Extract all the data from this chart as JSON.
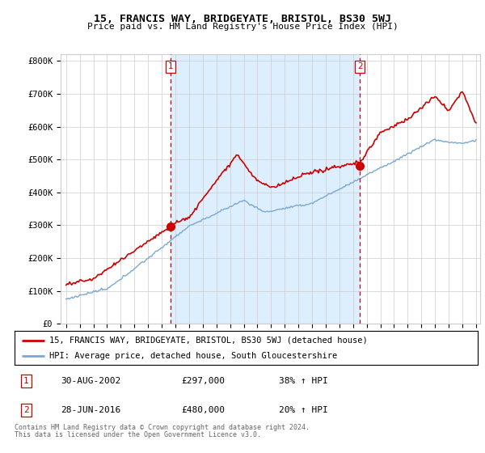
{
  "title": "15, FRANCIS WAY, BRIDGEYATE, BRISTOL, BS30 5WJ",
  "subtitle": "Price paid vs. HM Land Registry's House Price Index (HPI)",
  "ylabel_ticks": [
    "£0",
    "£100K",
    "£200K",
    "£300K",
    "£400K",
    "£500K",
    "£600K",
    "£700K",
    "£800K"
  ],
  "ytick_values": [
    0,
    100000,
    200000,
    300000,
    400000,
    500000,
    600000,
    700000,
    800000
  ],
  "ylim": [
    0,
    820000
  ],
  "xlim_start": 1994.6,
  "xlim_end": 2025.3,
  "red_line_color": "#cc0000",
  "blue_line_color": "#7aa8d2",
  "shade_color": "#ddeeff",
  "grid_color": "#cccccc",
  "background_color": "#ffffff",
  "transaction1_x": 2002.667,
  "transaction1_y": 297000,
  "transaction2_x": 2016.5,
  "transaction2_y": 480000,
  "legend_red": "15, FRANCIS WAY, BRIDGEYATE, BRISTOL, BS30 5WJ (detached house)",
  "legend_blue": "HPI: Average price, detached house, South Gloucestershire",
  "table_row1": [
    "1",
    "30-AUG-2002",
    "£297,000",
    "38% ↑ HPI"
  ],
  "table_row2": [
    "2",
    "28-JUN-2016",
    "£480,000",
    "20% ↑ HPI"
  ],
  "footer1": "Contains HM Land Registry data © Crown copyright and database right 2024.",
  "footer2": "This data is licensed under the Open Government Licence v3.0."
}
